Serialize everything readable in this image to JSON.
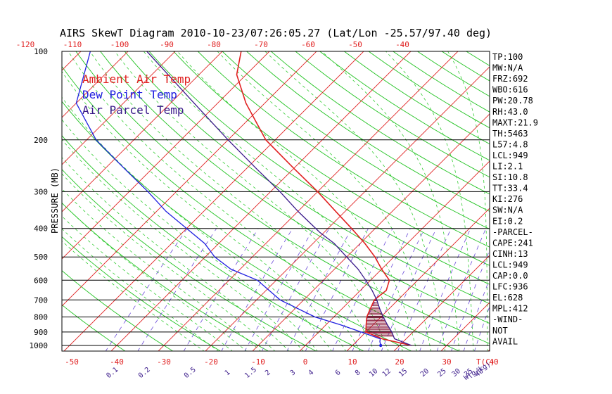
{
  "chart_data": {
    "type": "line",
    "title": "AIRS SkewT Diagram 2010-10-23/07:26:05.27 (Lat/Lon -25.57/97.40 deg)",
    "ylabel": "PRESSURE (MB)",
    "xlabel": "T(C)",
    "mixing_label": "W(g/kg)",
    "y_scale": "log",
    "ylim": [
      1000,
      100
    ],
    "xlim": [
      -50,
      40
    ],
    "top_ticks": [
      "-120",
      "-110",
      "-100",
      "-90",
      "-80",
      "-70",
      "-60",
      "-50",
      "-40"
    ],
    "top_tick_values": [
      -120,
      -110,
      -100,
      -90,
      -80,
      -70,
      -60,
      -50,
      -40
    ],
    "bottom_ticks": [
      "-50",
      "-40",
      "-30",
      "-20",
      "-10",
      "0",
      "10",
      "20",
      "30",
      "40"
    ],
    "bottom_tick_values": [
      -50,
      -40,
      -30,
      -20,
      -10,
      0,
      10,
      20,
      30,
      40
    ],
    "pressure_ticks": [
      "100",
      "200",
      "300",
      "400",
      "500",
      "600",
      "700",
      "800",
      "900",
      "1000"
    ],
    "pressure_values": [
      100,
      200,
      300,
      400,
      500,
      600,
      700,
      800,
      900,
      1000
    ],
    "mixing_ticks": [
      "0.1",
      "0.2",
      "0.5",
      "1",
      "1.5",
      "2",
      "3",
      "4",
      "6",
      "8",
      "10",
      "12",
      "15",
      "20",
      "25",
      "30",
      "35",
      "40"
    ],
    "mixing_values": [
      0.1,
      0.2,
      0.5,
      1,
      1.5,
      2,
      3,
      4,
      6,
      8,
      10,
      12,
      15,
      20,
      25,
      30,
      35,
      40
    ],
    "legend": [
      {
        "name": "Ambient Air Temp",
        "color": "#e02020"
      },
      {
        "name": "Dew Point Temp",
        "color": "#2020e0"
      },
      {
        "name": "Air Parcel Temp",
        "color": "#3a1a8a"
      }
    ],
    "series": [
      {
        "name": "Ambient Air Temp",
        "color": "#e02020",
        "points": [
          [
            1000,
            22.5
          ],
          [
            950,
            15.0
          ],
          [
            900,
            10.0
          ],
          [
            850,
            8.5
          ],
          [
            800,
            7.0
          ],
          [
            750,
            6.0
          ],
          [
            700,
            5.0
          ],
          [
            650,
            5.5
          ],
          [
            600,
            4.0
          ],
          [
            550,
            0.0
          ],
          [
            500,
            -4.0
          ],
          [
            450,
            -9.0
          ],
          [
            400,
            -15.0
          ],
          [
            350,
            -22.0
          ],
          [
            300,
            -30.0
          ],
          [
            250,
            -40.0
          ],
          [
            200,
            -52.0
          ],
          [
            150,
            -64.0
          ],
          [
            120,
            -72.0
          ],
          [
            100,
            -76.0
          ]
        ]
      },
      {
        "name": "Dew Point Temp",
        "color": "#2020e0",
        "points": [
          [
            1000,
            16.0
          ],
          [
            970,
            15.0
          ],
          [
            950,
            14.5
          ],
          [
            900,
            9.0
          ],
          [
            850,
            3.0
          ],
          [
            800,
            -4.0
          ],
          [
            700,
            -15.0
          ],
          [
            600,
            -24.0
          ],
          [
            550,
            -32.0
          ],
          [
            500,
            -38.0
          ],
          [
            450,
            -43.0
          ],
          [
            400,
            -50.0
          ],
          [
            350,
            -58.0
          ],
          [
            300,
            -66.0
          ],
          [
            250,
            -76.0
          ],
          [
            200,
            -88.0
          ],
          [
            150,
            -100.0
          ],
          [
            100,
            -108.0
          ]
        ]
      },
      {
        "name": "Air Parcel Temp",
        "color": "#3a1a8a",
        "points": [
          [
            1000,
            22.5
          ],
          [
            949,
            17.5
          ],
          [
            900,
            15.5
          ],
          [
            850,
            13.0
          ],
          [
            800,
            10.5
          ],
          [
            750,
            8.0
          ],
          [
            700,
            5.5
          ],
          [
            650,
            2.5
          ],
          [
            600,
            -1.0
          ],
          [
            550,
            -5.0
          ],
          [
            500,
            -10.0
          ],
          [
            450,
            -15.5
          ],
          [
            412,
            -21.0
          ],
          [
            350,
            -30.0
          ],
          [
            300,
            -38.0
          ],
          [
            250,
            -48.0
          ],
          [
            200,
            -60.0
          ],
          [
            150,
            -75.0
          ],
          [
            100,
            -96.0
          ]
        ]
      }
    ]
  },
  "side_panel": [
    "TP:100",
    "MW:N/A",
    "FRZ:692",
    "WBO:616",
    "PW:20.78",
    "RH:43.0",
    "MAXT:21.9",
    "TH:5463",
    "L57:4.8",
    "LCL:949",
    "LI:2.1",
    "SI:10.8",
    "TT:33.4",
    "KI:276",
    "SW:N/A",
    "EI:0.2",
    "-PARCEL-",
    "CAPE:241",
    "CINH:13",
    "LCL:949",
    "CAP:0.0",
    "LFC:936",
    "EL:628",
    "MPL:412",
    "-WIND-",
    "NOT",
    "AVAIL"
  ]
}
